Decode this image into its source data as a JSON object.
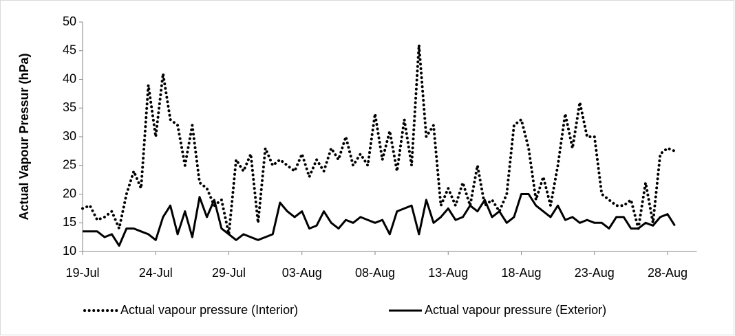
{
  "chart_data": {
    "type": "line",
    "ylabel": "Actual Vapour Pressur (hPa)",
    "x": [
      0,
      0.5,
      1,
      1.5,
      2,
      2.5,
      3,
      3.5,
      4,
      4.5,
      5,
      5.5,
      6,
      6.5,
      7,
      7.5,
      8,
      8.5,
      9,
      9.5,
      10,
      10.5,
      11,
      11.5,
      12,
      12.5,
      13,
      13.5,
      14,
      14.5,
      15,
      15.5,
      16,
      16.5,
      17,
      17.5,
      18,
      18.5,
      19,
      19.5,
      20,
      20.5,
      21,
      21.5,
      22,
      22.5,
      23,
      23.5,
      24,
      24.5,
      25,
      25.5,
      26,
      26.5,
      27,
      27.5,
      28,
      28.5,
      29,
      29.5,
      30,
      30.5,
      31,
      31.5,
      32,
      32.5,
      33,
      33.5,
      34,
      34.5,
      35,
      35.5,
      36,
      36.5,
      37,
      37.5,
      38,
      38.5,
      39,
      39.5,
      40,
      40.5
    ],
    "series": [
      {
        "name": "Actual vapour pressure (Interior)",
        "color": "#000000",
        "style": "dotted",
        "values": [
          17.5,
          18,
          15.5,
          16,
          17,
          14,
          20,
          24,
          21,
          39,
          30,
          41,
          33,
          32,
          25,
          32,
          22,
          21,
          18,
          19,
          13,
          26,
          24,
          27,
          15,
          28,
          25,
          26,
          25,
          24,
          27,
          23,
          26,
          24,
          28,
          26,
          30,
          25,
          27,
          25,
          34,
          26,
          31,
          24,
          33,
          25,
          46,
          30,
          32,
          18,
          21,
          18,
          22,
          18,
          25,
          18,
          19,
          17,
          20,
          32,
          33,
          28,
          19,
          23,
          18,
          25,
          34,
          28,
          36,
          30,
          30,
          20,
          19,
          18,
          18,
          19,
          14,
          22,
          15,
          27,
          28,
          27.5
        ]
      },
      {
        "name": "Actual vapour pressure (Exterior)",
        "color": "#000000",
        "style": "solid",
        "values": [
          13.5,
          13.5,
          13.5,
          12.5,
          13,
          11,
          14,
          14,
          13.5,
          13,
          12,
          16,
          18,
          13,
          17,
          12.5,
          19.5,
          16,
          19,
          14,
          13,
          12,
          13,
          12.5,
          12,
          12.5,
          13,
          18.5,
          17,
          16,
          17,
          14,
          14.5,
          17,
          15,
          14,
          15.5,
          15,
          16,
          15.5,
          15,
          15.5,
          13,
          17,
          17.5,
          18,
          13,
          19,
          15,
          16,
          17.5,
          15.5,
          16,
          18,
          17,
          19,
          16,
          17,
          15,
          16,
          20,
          20,
          18,
          17,
          16,
          18,
          15.5,
          16,
          15,
          15.5,
          15,
          15,
          14,
          16,
          16,
          14,
          14,
          15,
          14.5,
          16,
          16.5,
          14.5
        ]
      }
    ],
    "xlim": [
      0,
      42
    ],
    "xticks": [
      {
        "value": 0,
        "label": "19-Jul"
      },
      {
        "value": 5,
        "label": "24-Jul"
      },
      {
        "value": 10,
        "label": "29-Jul"
      },
      {
        "value": 15,
        "label": "03-Aug"
      },
      {
        "value": 20,
        "label": "08-Aug"
      },
      {
        "value": 25,
        "label": "13-Aug"
      },
      {
        "value": 30,
        "label": "18-Aug"
      },
      {
        "value": 35,
        "label": "23-Aug"
      },
      {
        "value": 40,
        "label": "28-Aug"
      }
    ],
    "ylim": [
      10,
      50
    ],
    "yticks": [
      10,
      15,
      20,
      25,
      30,
      35,
      40,
      45,
      50
    ],
    "grid": false,
    "legend": "bottom"
  }
}
